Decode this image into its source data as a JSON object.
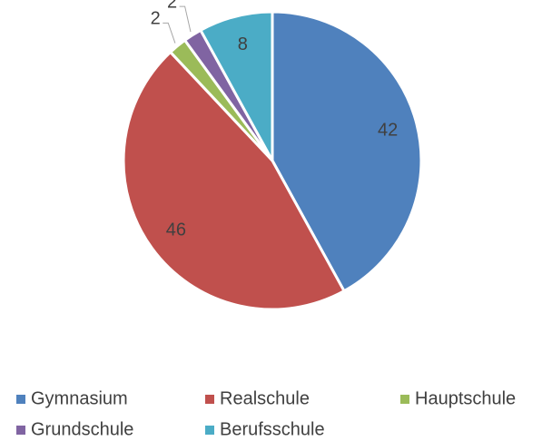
{
  "chart_data": {
    "type": "pie",
    "categories": [
      "Gymnasium",
      "Realschule",
      "Hauptschule",
      "Grundschule",
      "Berufsschule"
    ],
    "values": [
      42,
      46,
      2,
      2,
      8
    ],
    "colors": [
      "#4f81bd",
      "#c0504d",
      "#9bbb59",
      "#8064a2",
      "#4bacc6"
    ],
    "legend": "bottom"
  }
}
